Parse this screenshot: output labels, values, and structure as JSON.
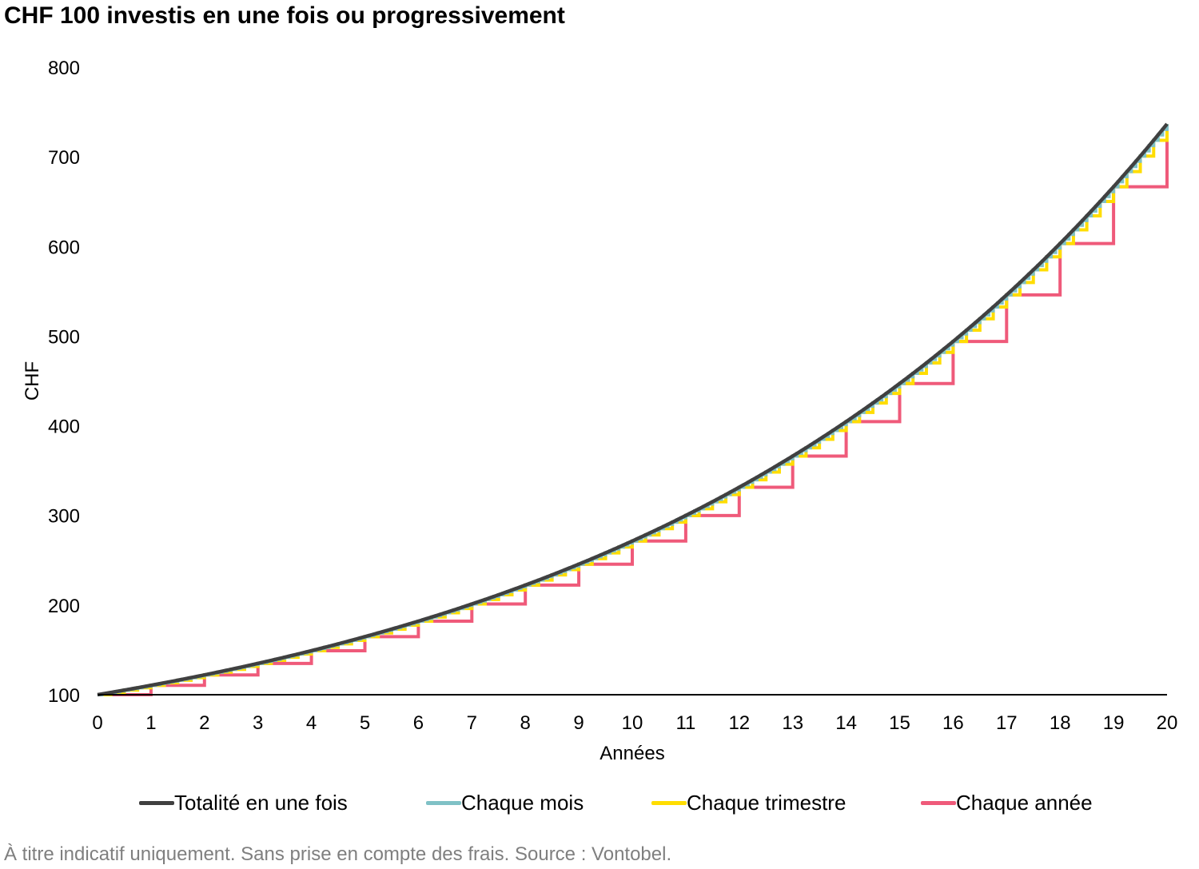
{
  "title": "CHF 100 investis en une fois ou progressivement",
  "footnote": "À titre indicatif uniquement. Sans prise en compte des frais. Source : Vontobel.",
  "colors": {
    "lump_sum": "#404040",
    "monthly": "#7fc1c6",
    "quarterly": "#ffdd00",
    "yearly": "#ef5a7a",
    "axis": "#000000"
  },
  "chart_data": {
    "type": "line",
    "title": "CHF 100 investis en une fois ou progressivement",
    "xlabel": "Années",
    "ylabel": "CHF",
    "xlim": [
      0,
      20
    ],
    "ylim": [
      100,
      800
    ],
    "x_ticks": [
      "0",
      "1",
      "2",
      "3",
      "4",
      "5",
      "6",
      "7",
      "8",
      "9",
      "10",
      "11",
      "12",
      "13",
      "14",
      "15",
      "16",
      "17",
      "18",
      "19",
      "20"
    ],
    "y_ticks": [
      "100",
      "200",
      "300",
      "400",
      "500",
      "600",
      "700",
      "800"
    ],
    "grid": false,
    "legend_position": "bottom",
    "annual_growth_rate": 0.105,
    "series": [
      {
        "name": "Totalité en une fois",
        "key": "lump_sum",
        "step": "continuous",
        "x": [
          0,
          1,
          2,
          3,
          4,
          5,
          6,
          7,
          8,
          9,
          10,
          11,
          12,
          13,
          14,
          15,
          16,
          17,
          18,
          19,
          20
        ],
        "values": [
          100,
          110,
          122,
          135,
          149,
          165,
          182,
          201,
          222,
          245,
          271,
          300,
          331,
          366,
          404,
          446,
          494,
          545,
          603,
          666,
          737
        ]
      },
      {
        "name": "Chaque mois",
        "key": "monthly",
        "step": "monthly",
        "x": [
          0,
          1,
          2,
          3,
          4,
          5,
          6,
          7,
          8,
          9,
          10,
          11,
          12,
          13,
          14,
          15,
          16,
          17,
          18,
          19,
          20
        ],
        "values": [
          100,
          110,
          121,
          134,
          148,
          164,
          181,
          200,
          221,
          244,
          270,
          298,
          329,
          364,
          402,
          444,
          491,
          542,
          599,
          662,
          731
        ]
      },
      {
        "name": "Chaque trimestre",
        "key": "quarterly",
        "step": "quarterly",
        "x": [
          0,
          1,
          2,
          3,
          4,
          5,
          6,
          7,
          8,
          9,
          10,
          11,
          12,
          13,
          14,
          15,
          16,
          17,
          18,
          19,
          20
        ],
        "values": [
          100,
          108,
          120,
          132,
          146,
          161,
          178,
          197,
          217,
          240,
          265,
          293,
          324,
          358,
          395,
          437,
          482,
          533,
          589,
          651,
          720
        ]
      },
      {
        "name": "Chaque année",
        "key": "yearly",
        "step": "yearly",
        "x": [
          0,
          1,
          2,
          3,
          4,
          5,
          6,
          7,
          8,
          9,
          10,
          11,
          12,
          13,
          14,
          15,
          16,
          17,
          18,
          19,
          20
        ],
        "values": [
          100,
          100,
          110,
          121,
          134,
          148,
          164,
          181,
          200,
          221,
          244,
          270,
          298,
          329,
          364,
          402,
          444,
          491,
          542,
          599,
          672
        ]
      }
    ]
  }
}
